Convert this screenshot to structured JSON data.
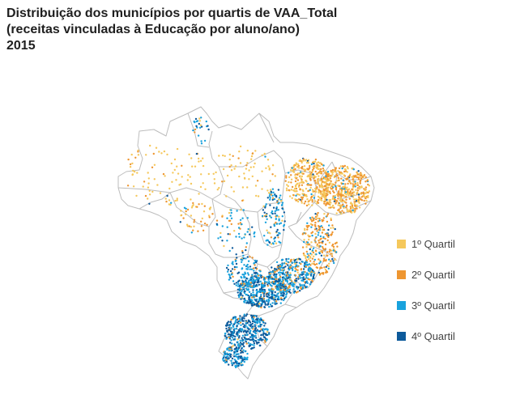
{
  "title": {
    "line1": "Distribuição dos municípios por quartis de VAA_Total",
    "line2": "(receitas vinculadas à Educação por aluno/ano)",
    "line3": "2015"
  },
  "legend": [
    {
      "label": "1º Quartil",
      "color": "#f5c85c"
    },
    {
      "label": "2º Quartil",
      "color": "#ee9631"
    },
    {
      "label": "3º Quartil",
      "color": "#19a2dd"
    },
    {
      "label": "4º Quartil",
      "color": "#0d5a9b"
    }
  ],
  "map": {
    "outline_color": "#bdbdbd",
    "fill_color": "#ffffff"
  }
}
